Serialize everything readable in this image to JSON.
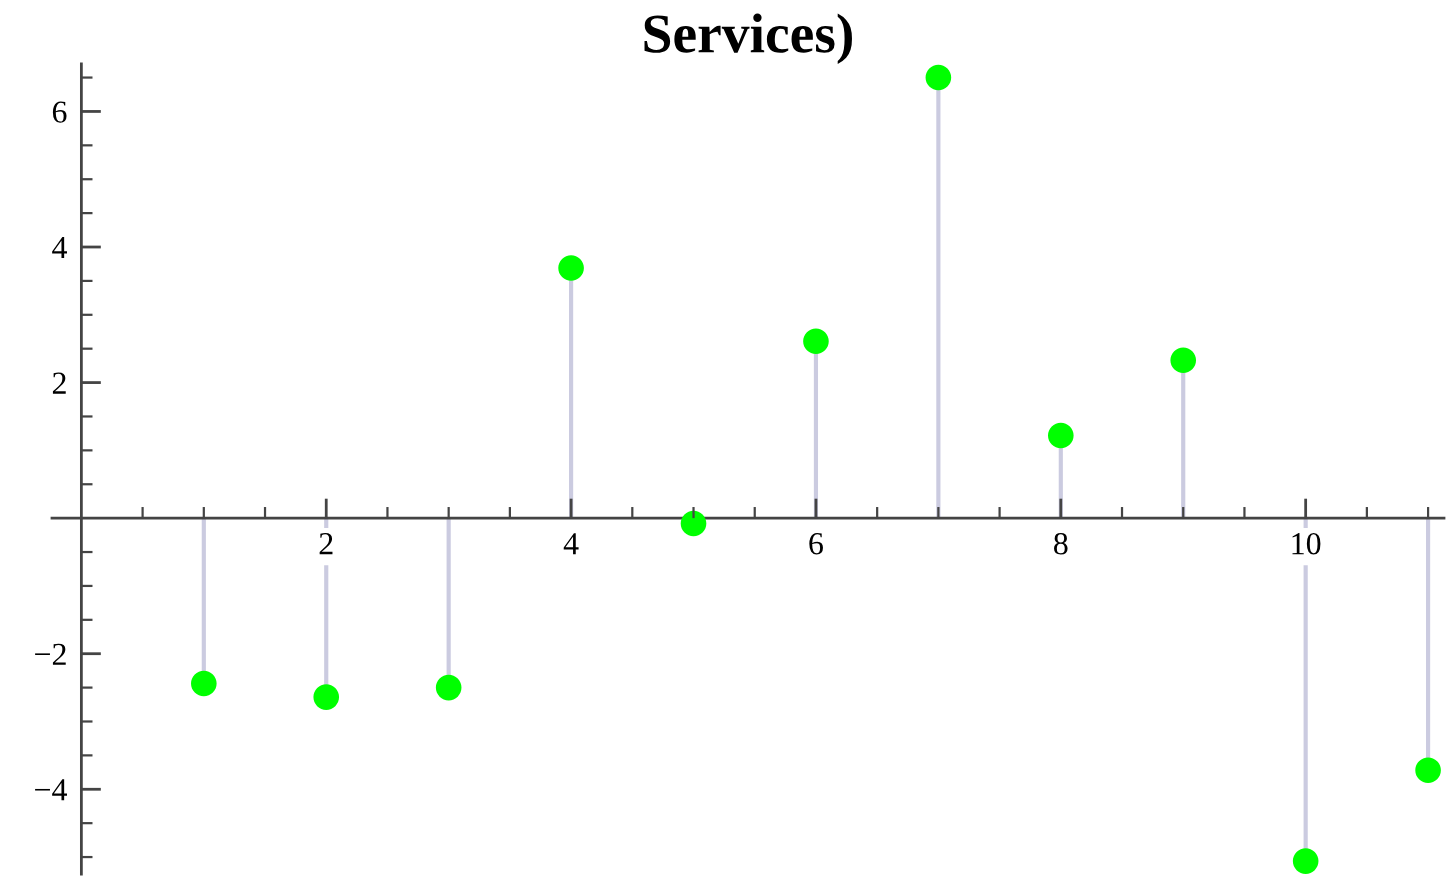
{
  "chart_data": {
    "type": "lollipop",
    "title": "Services)",
    "x": [
      1,
      2,
      3,
      4,
      5,
      6,
      7,
      8,
      9,
      10,
      11
    ],
    "values": [
      -2.44,
      -2.64,
      -2.5,
      3.69,
      -0.08,
      2.61,
      6.5,
      1.22,
      2.33,
      -5.06,
      -3.72
    ],
    "color": "#00ff00",
    "marker": "circle",
    "xlim": [
      -0.24,
      11.13
    ],
    "xticks": [
      {
        "value": 0.5,
        "label": null
      },
      {
        "value": 1,
        "label": null
      },
      {
        "value": 1.5,
        "label": null
      },
      2,
      {
        "value": 2.5,
        "label": null
      },
      {
        "value": 3,
        "label": null
      },
      {
        "value": 3.5,
        "label": null
      },
      4,
      {
        "value": 4.5,
        "label": null
      },
      {
        "value": 5,
        "label": null
      },
      {
        "value": 5.5,
        "label": null
      },
      6,
      {
        "value": 6.5,
        "label": null
      },
      {
        "value": 7,
        "label": null
      },
      {
        "value": 7.5,
        "label": null
      },
      8,
      {
        "value": 8.5,
        "label": null
      },
      {
        "value": 9,
        "label": null
      },
      {
        "value": 9.5,
        "label": null
      },
      10,
      {
        "value": 10.5,
        "label": null
      },
      {
        "value": 11,
        "label": null
      }
    ],
    "ylim": [
      -5.25,
      6.7
    ],
    "yticks": [
      {
        "value": -5,
        "label": null
      },
      {
        "value": -4.5,
        "label": null
      },
      {
        "value": -4,
        "label": "−4"
      },
      {
        "value": -3.5,
        "label": null
      },
      {
        "value": -3,
        "label": null
      },
      {
        "value": -2.5,
        "label": null
      },
      {
        "value": -2,
        "label": "−2"
      },
      {
        "value": -1.5,
        "label": null
      },
      {
        "value": -1,
        "label": null
      },
      {
        "value": -0.5,
        "label": null
      },
      {
        "value": 0.5,
        "label": null
      },
      {
        "value": 1,
        "label": null
      },
      {
        "value": 1.5,
        "label": null
      },
      2,
      {
        "value": 2.5,
        "label": null
      },
      {
        "value": 3,
        "label": null
      },
      {
        "value": 3.5,
        "label": null
      },
      4,
      {
        "value": 4.5,
        "label": null
      },
      {
        "value": 5,
        "label": null
      },
      {
        "value": 5.5,
        "label": null
      },
      6,
      {
        "value": 6.5,
        "label": null
      }
    ]
  }
}
